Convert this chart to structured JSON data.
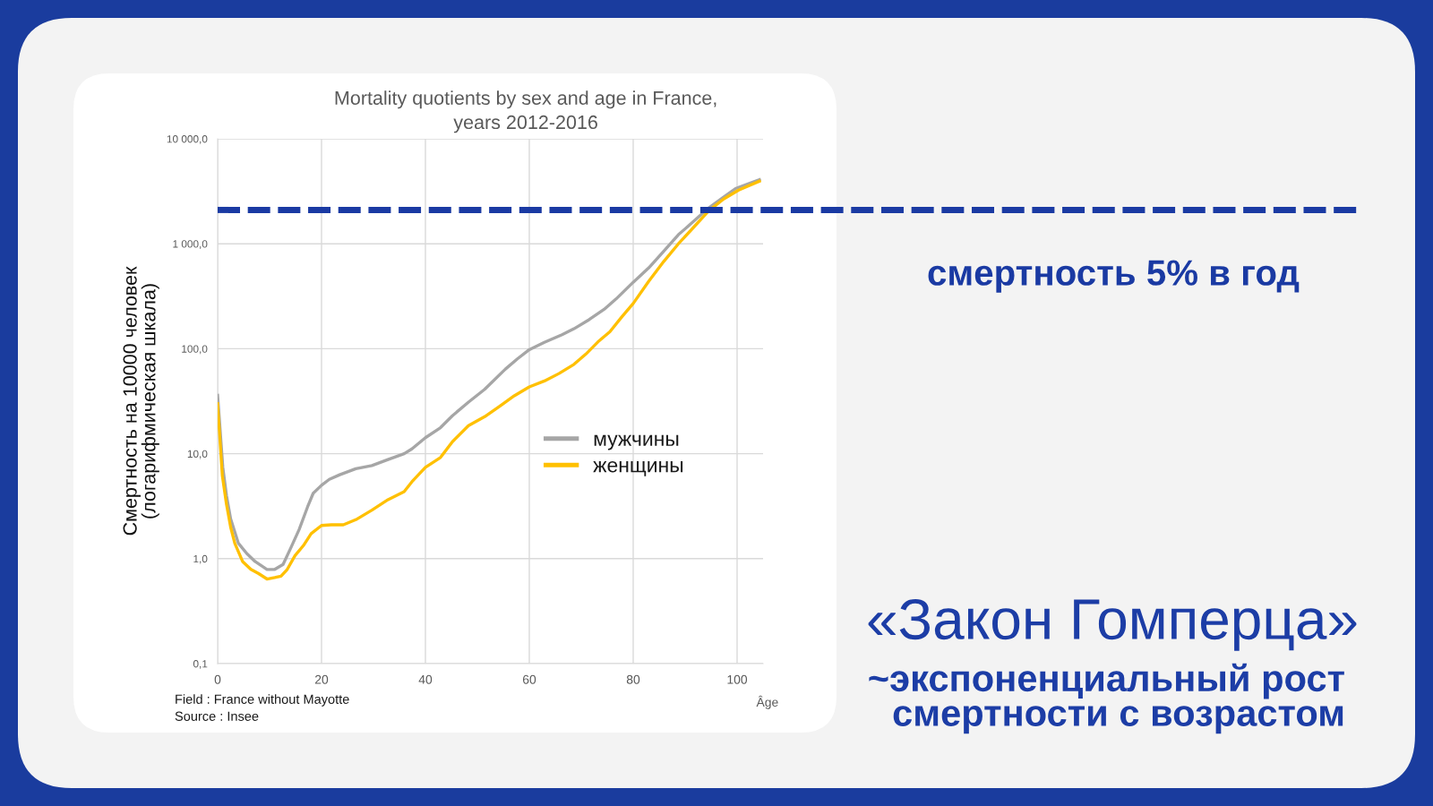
{
  "chart_data": {
    "type": "line",
    "title": "Mortality quotients by sex and age in France,\nyears 2012-2016",
    "xlabel": "Âge",
    "ylabel": "Смертность на 10000 человек\n(логарифмическая шкала)",
    "annotations": [
      "Field : France without Mayotte",
      "Source : Insee",
      "«Закон Гомперца»",
      "~экспоненциальный рост\nсмертности с возрастом"
    ],
    "series": [
      {
        "name": "мужчины",
        "color": "#a6a6a6",
        "x": [
          0,
          1,
          1.7,
          2.5,
          4,
          5.6,
          7.2,
          9.5,
          11,
          12.6,
          14.1,
          15.7,
          17.3,
          18.4,
          20,
          21.5,
          23.5,
          26.6,
          29.7,
          32.8,
          35.9,
          37.4,
          40,
          42.9,
          45.2,
          48.3,
          51.4,
          55.4,
          57.7,
          60,
          62.9,
          66.3,
          68.6,
          71.5,
          74.4,
          76.7,
          80,
          83,
          85.9,
          88.7,
          91.6,
          94.5,
          97.4,
          99.7,
          102,
          104.3
        ],
        "values": [
          36,
          7.4,
          4.0,
          2.4,
          1.4,
          1.12,
          0.94,
          0.79,
          0.79,
          0.88,
          1.27,
          1.9,
          3.1,
          4.2,
          5.0,
          5.7,
          6.3,
          7.2,
          7.7,
          8.8,
          10,
          11.1,
          14.2,
          17.7,
          23,
          31,
          41,
          64,
          80,
          98,
          115,
          136,
          155,
          189,
          237,
          298,
          430,
          590,
          850,
          1220,
          1630,
          2190,
          2790,
          3360,
          3700,
          4080
        ]
      },
      {
        "name": "женщины",
        "color": "#ffc000",
        "x": [
          0,
          0.9,
          1.7,
          2.5,
          3.3,
          4.8,
          6.4,
          7.9,
          9.5,
          11,
          12.2,
          13.4,
          14.9,
          16.5,
          18,
          20,
          21.9,
          24.2,
          26.6,
          29.7,
          32.8,
          35.9,
          37.4,
          40,
          42.9,
          45.2,
          48.3,
          51.4,
          54.3,
          57.1,
          60,
          62.9,
          65.7,
          68.6,
          70.9,
          73.2,
          75.5,
          77.8,
          80,
          83,
          85.9,
          88.7,
          91.6,
          94.5,
          97.4,
          100.3,
          104.3
        ],
        "values": [
          30,
          6.2,
          3.3,
          2.0,
          1.4,
          0.94,
          0.79,
          0.72,
          0.64,
          0.66,
          0.68,
          0.79,
          1.07,
          1.33,
          1.73,
          2.07,
          2.1,
          2.1,
          2.35,
          2.9,
          3.65,
          4.35,
          5.4,
          7.4,
          9.2,
          13,
          18.5,
          22.5,
          28.3,
          35.6,
          43.3,
          49.3,
          58,
          71,
          89,
          116,
          145,
          201,
          270,
          440,
          680,
          1000,
          1430,
          2050,
          2670,
          3250,
          3950
        ]
      }
    ],
    "xlim": [
      0,
      105
    ],
    "xticks": [
      0,
      20,
      40,
      60,
      80,
      100
    ],
    "ylim": [
      0.1,
      10000
    ],
    "yticks": [
      {
        "value": 0.1,
        "label": "0,1"
      },
      {
        "value": 1,
        "label": "1,0"
      },
      {
        "value": 10,
        "label": "10,0"
      },
      {
        "value": 100,
        "label": "100,0"
      },
      {
        "value": 1000,
        "label": "1 000,0"
      },
      {
        "value": 10000,
        "label": "10 000,0"
      }
    ],
    "log": true,
    "grid": true,
    "legend": "center right",
    "line_style": "solid",
    "ref_lines": [
      {
        "axis": "y",
        "value": 2100,
        "label": "смертность 5% в год",
        "color": "#1a3aa3",
        "line_style": "dashed"
      }
    ]
  }
}
